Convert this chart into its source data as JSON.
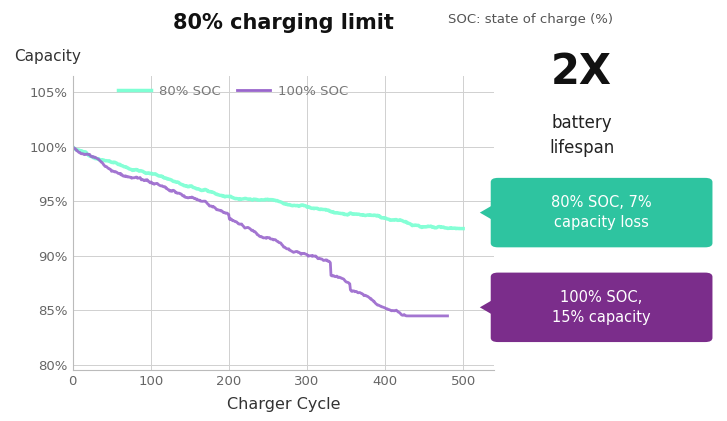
{
  "title": "80% charging limit",
  "subtitle": "SOC: state of charge (%)",
  "xlabel": "Charger Cycle",
  "ylabel": "Capacity",
  "xlim": [
    0,
    540
  ],
  "ylim": [
    0.795,
    1.065
  ],
  "yticks": [
    0.8,
    0.85,
    0.9,
    0.95,
    1.0,
    1.05
  ],
  "ytick_labels": [
    "80%",
    "85%",
    "90%",
    "95%",
    "100%",
    "105%"
  ],
  "xticks": [
    0,
    100,
    200,
    300,
    400,
    500
  ],
  "legend_80_label": "80% SOC",
  "legend_100_label": "100% SOC",
  "color_80": "#7FFFD4",
  "color_100": "#9966CC",
  "annotation_80_text": "80% SOC, 7%\ncapacity loss",
  "annotation_100_text": "100% SOC,\n15% capacity",
  "annotation_80_color": "#2EC4A0",
  "annotation_100_color": "#7B2D8B",
  "text_2x": "2X",
  "text_battery": "battery\nlifespan",
  "background_color": "#ffffff",
  "grid_color": "#d0d0d0",
  "title_fontsize": 16,
  "axis_label_color": "#555555",
  "tick_color": "#666666"
}
